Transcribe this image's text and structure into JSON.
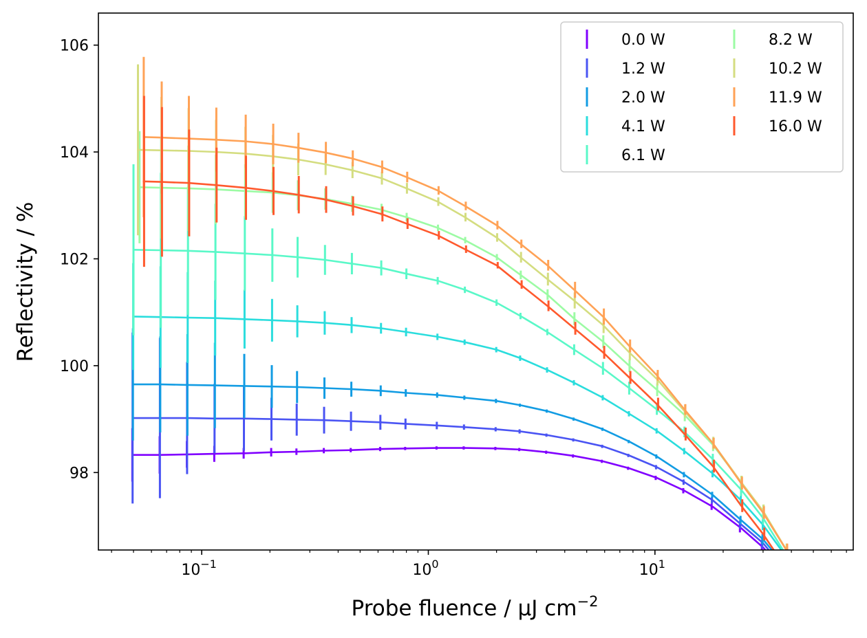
{
  "chart_data": {
    "type": "line",
    "xlabel": "Probe fluence  / μJ cm",
    "xlabel_sup": "−2",
    "ylabel": "Reflectivity / %",
    "xscale": "log",
    "xlim": [
      0.035,
      75
    ],
    "ylim": [
      96.55,
      106.6
    ],
    "x_ticks": [
      {
        "value": 0.1,
        "base": "10",
        "exp": "−1"
      },
      {
        "value": 1,
        "base": "10",
        "exp": "0"
      },
      {
        "value": 10,
        "base": "10",
        "exp": "1"
      }
    ],
    "y_ticks": [
      {
        "value": 98,
        "label": "98"
      },
      {
        "value": 100,
        "label": "100"
      },
      {
        "value": 102,
        "label": "102"
      },
      {
        "value": 104,
        "label": "104"
      },
      {
        "value": 106,
        "label": "106"
      }
    ],
    "legend_position": "top-right",
    "legend_columns": 2,
    "x": [
      0.05,
      0.066,
      0.087,
      0.115,
      0.155,
      0.205,
      0.265,
      0.35,
      0.46,
      0.62,
      0.8,
      1.1,
      1.45,
      2.0,
      2.55,
      3.35,
      4.4,
      5.9,
      7.7,
      10.2,
      13.5,
      18.0,
      24.0,
      30.0,
      38.0
    ],
    "series": [
      {
        "name": "0.0 W",
        "color": "#8000ff",
        "x0": 0.05,
        "y": [
          98.33,
          98.33,
          98.34,
          98.35,
          98.36,
          98.38,
          98.39,
          98.41,
          98.42,
          98.44,
          98.45,
          98.46,
          98.46,
          98.45,
          98.43,
          98.38,
          98.31,
          98.21,
          98.08,
          97.9,
          97.66,
          97.36,
          96.96,
          96.6,
          96.1
        ],
        "err": [
          0.5,
          0.35,
          0.25,
          0.15,
          0.1,
          0.08,
          0.06,
          0.05,
          0.04,
          0.04,
          0.03,
          0.03,
          0.03,
          0.03,
          0.03,
          0.03,
          0.03,
          0.03,
          0.03,
          0.04,
          0.05,
          0.06,
          0.08,
          0.1,
          0.12
        ]
      },
      {
        "name": "1.2 W",
        "color": "#4a54f3",
        "x0": 0.05,
        "y": [
          99.02,
          99.02,
          99.02,
          99.01,
          99.01,
          99.0,
          98.99,
          98.98,
          98.96,
          98.94,
          98.91,
          98.88,
          98.85,
          98.81,
          98.77,
          98.7,
          98.61,
          98.49,
          98.32,
          98.1,
          97.82,
          97.48,
          97.03,
          96.68,
          96.15
        ],
        "err": [
          1.6,
          1.5,
          1.05,
          0.65,
          0.6,
          0.4,
          0.3,
          0.25,
          0.18,
          0.14,
          0.1,
          0.07,
          0.05,
          0.04,
          0.04,
          0.03,
          0.03,
          0.03,
          0.03,
          0.04,
          0.05,
          0.06,
          0.08,
          0.1,
          0.12
        ]
      },
      {
        "name": "2.0 W",
        "color": "#129ce3",
        "x0": 0.05,
        "y": [
          99.65,
          99.65,
          99.64,
          99.63,
          99.62,
          99.61,
          99.6,
          99.58,
          99.56,
          99.53,
          99.49,
          99.45,
          99.4,
          99.34,
          99.26,
          99.15,
          99.0,
          98.81,
          98.58,
          98.3,
          97.96,
          97.58,
          97.11,
          96.75,
          96.22
        ],
        "err": [
          1.05,
          0.9,
          0.95,
          0.8,
          0.6,
          0.4,
          0.3,
          0.2,
          0.14,
          0.1,
          0.07,
          0.05,
          0.04,
          0.04,
          0.03,
          0.03,
          0.03,
          0.03,
          0.03,
          0.04,
          0.05,
          0.06,
          0.08,
          0.1,
          0.12
        ]
      },
      {
        "name": "4.1 W",
        "color": "#2adddd",
        "x0": 0.05,
        "y": [
          100.92,
          100.91,
          100.9,
          100.89,
          100.87,
          100.85,
          100.83,
          100.8,
          100.76,
          100.7,
          100.63,
          100.54,
          100.44,
          100.3,
          100.14,
          99.92,
          99.68,
          99.4,
          99.1,
          98.78,
          98.4,
          97.98,
          97.48,
          97.02,
          96.42
        ],
        "err": [
          1.0,
          0.95,
          0.85,
          0.7,
          0.55,
          0.4,
          0.3,
          0.22,
          0.15,
          0.1,
          0.08,
          0.06,
          0.05,
          0.05,
          0.05,
          0.05,
          0.05,
          0.05,
          0.05,
          0.05,
          0.06,
          0.07,
          0.08,
          0.1,
          0.12
        ]
      },
      {
        "name": "6.1 W",
        "color": "#5af8c8",
        "x0": 0.05,
        "y": [
          102.17,
          102.16,
          102.15,
          102.13,
          102.1,
          102.07,
          102.03,
          101.98,
          101.91,
          101.83,
          101.72,
          101.59,
          101.42,
          101.18,
          100.93,
          100.63,
          100.3,
          99.95,
          99.58,
          99.18,
          98.76,
          98.25,
          97.68,
          97.15,
          96.45
        ],
        "err": [
          1.6,
          1.45,
          1.2,
          0.9,
          0.7,
          0.5,
          0.38,
          0.28,
          0.2,
          0.14,
          0.1,
          0.07,
          0.06,
          0.06,
          0.06,
          0.06,
          0.1,
          0.12,
          0.12,
          0.1,
          0.1,
          0.1,
          0.12,
          0.12,
          0.12
        ]
      },
      {
        "name": "8.2 W",
        "color": "#9cfba4",
        "x0": 0.053,
        "y": [
          103.34,
          103.33,
          103.32,
          103.3,
          103.27,
          103.24,
          103.19,
          103.12,
          103.03,
          102.92,
          102.78,
          102.58,
          102.35,
          102.03,
          101.7,
          101.33,
          100.88,
          100.45,
          100.0,
          99.55,
          99.08,
          98.52,
          97.82,
          97.28,
          96.55
        ],
        "err": [
          1.05,
          0.95,
          0.8,
          0.65,
          0.5,
          0.38,
          0.28,
          0.2,
          0.15,
          0.11,
          0.08,
          0.06,
          0.06,
          0.06,
          0.08,
          0.1,
          0.12,
          0.12,
          0.12,
          0.12,
          0.12,
          0.12,
          0.12,
          0.12,
          0.12
        ]
      },
      {
        "name": "10.2 W",
        "color": "#d4dd80",
        "x0": 0.052,
        "y": [
          104.04,
          104.03,
          104.02,
          104.0,
          103.97,
          103.92,
          103.86,
          103.77,
          103.66,
          103.51,
          103.32,
          103.07,
          102.78,
          102.4,
          102.03,
          101.62,
          101.22,
          100.76,
          100.25,
          99.75,
          99.15,
          98.55,
          97.82,
          97.28,
          96.55
        ],
        "err": [
          1.6,
          1.0,
          0.8,
          0.6,
          0.5,
          0.4,
          0.3,
          0.2,
          0.15,
          0.12,
          0.1,
          0.08,
          0.08,
          0.08,
          0.1,
          0.12,
          0.15,
          0.15,
          0.15,
          0.12,
          0.12,
          0.12,
          0.12,
          0.12,
          0.12
        ]
      },
      {
        "name": "11.9 W",
        "color": "#ffa256",
        "x0": 0.055,
        "y": [
          104.28,
          104.27,
          104.25,
          104.23,
          104.2,
          104.15,
          104.08,
          103.99,
          103.88,
          103.72,
          103.53,
          103.28,
          102.99,
          102.63,
          102.28,
          101.88,
          101.42,
          100.92,
          100.37,
          99.82,
          99.18,
          98.55,
          97.8,
          97.25,
          96.55
        ],
        "err": [
          1.5,
          1.05,
          0.8,
          0.6,
          0.5,
          0.38,
          0.28,
          0.2,
          0.15,
          0.12,
          0.1,
          0.08,
          0.08,
          0.08,
          0.08,
          0.1,
          0.15,
          0.15,
          0.12,
          0.1,
          0.1,
          0.1,
          0.12,
          0.12,
          0.12
        ]
      },
      {
        "name": "16.0 W",
        "color": "#ff592d",
        "x0": 0.055,
        "y": [
          103.45,
          103.44,
          103.42,
          103.38,
          103.33,
          103.27,
          103.2,
          103.11,
          102.99,
          102.84,
          102.66,
          102.44,
          102.18,
          101.88,
          101.52,
          101.12,
          100.7,
          100.25,
          99.78,
          99.28,
          98.72,
          98.12,
          97.38,
          96.85,
          96.2
        ],
        "err": [
          1.6,
          1.4,
          1.0,
          0.7,
          0.6,
          0.45,
          0.35,
          0.25,
          0.18,
          0.14,
          0.1,
          0.08,
          0.07,
          0.06,
          0.08,
          0.1,
          0.12,
          0.12,
          0.12,
          0.12,
          0.12,
          0.12,
          0.12,
          0.12,
          0.12
        ]
      }
    ]
  }
}
